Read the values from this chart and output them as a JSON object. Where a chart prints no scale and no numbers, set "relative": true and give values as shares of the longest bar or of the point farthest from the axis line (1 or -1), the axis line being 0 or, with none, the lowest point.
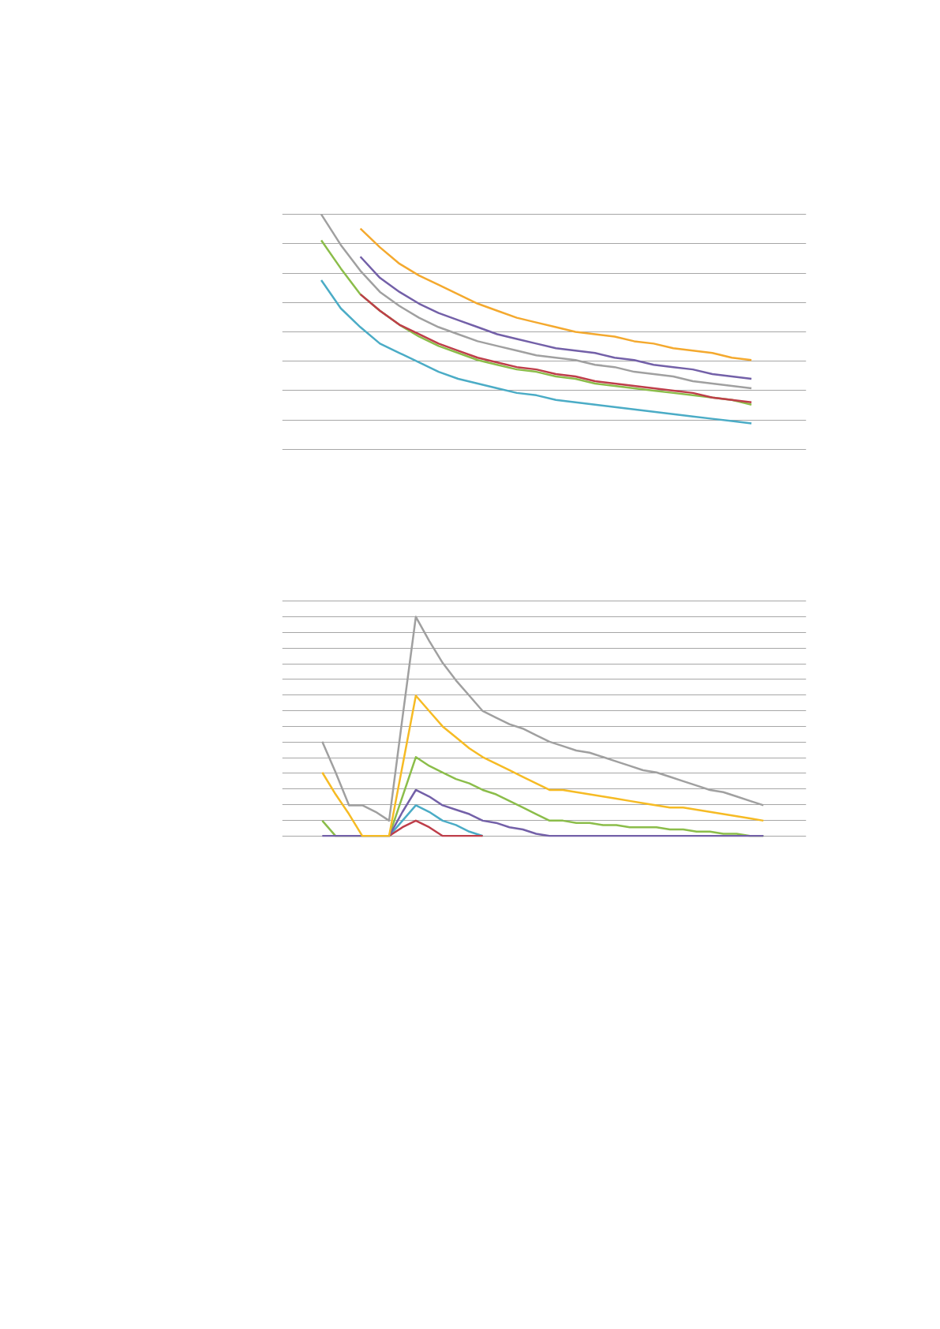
{
  "chart_data": [
    {
      "type": "line",
      "relative": true,
      "grid": "y",
      "tick_labels": false,
      "line_style": "solid",
      "marker": "none",
      "categories": [
        null,
        null,
        null,
        null,
        null,
        null,
        null,
        null,
        null,
        null,
        null,
        null,
        null,
        null,
        null,
        null,
        null,
        null,
        null,
        null,
        null,
        null,
        null
      ],
      "series": [
        {
          "color": "#4bacc6",
          "values": [
            0.72,
            0.6,
            0.52,
            0.45,
            0.41,
            0.37,
            0.33,
            0.3,
            0.28,
            0.26,
            0.24,
            0.23,
            0.21,
            0.2,
            0.19,
            0.18,
            0.17,
            0.16,
            0.15,
            0.14,
            0.13,
            0.12,
            0.11
          ]
        },
        {
          "color": "#8bbd4a",
          "values": [
            0.89,
            0.77,
            0.66,
            0.59,
            0.53,
            0.48,
            0.44,
            0.41,
            0.38,
            0.36,
            0.34,
            0.33,
            0.31,
            0.3,
            0.28,
            0.27,
            0.26,
            0.25,
            0.24,
            0.23,
            0.22,
            0.21,
            0.19
          ]
        },
        {
          "color": "#a0a0a0",
          "values": [
            1.0,
            0.87,
            0.76,
            0.67,
            0.61,
            0.56,
            0.52,
            0.49,
            0.46,
            0.44,
            0.42,
            0.4,
            0.39,
            0.38,
            0.36,
            0.35,
            0.33,
            0.32,
            0.31,
            0.29,
            0.28,
            0.27,
            0.26
          ]
        },
        {
          "color": "#be3e4a",
          "values": [
            null,
            null,
            0.66,
            0.59,
            0.53,
            0.49,
            0.45,
            0.42,
            0.39,
            0.37,
            0.35,
            0.34,
            0.32,
            0.31,
            0.29,
            0.28,
            0.27,
            0.26,
            0.25,
            0.24,
            0.22,
            0.21,
            0.2
          ]
        },
        {
          "color": "#7360a8",
          "values": [
            null,
            null,
            0.82,
            0.73,
            0.67,
            0.62,
            0.58,
            0.55,
            0.52,
            0.49,
            0.47,
            0.45,
            0.43,
            0.42,
            0.41,
            0.39,
            0.38,
            0.36,
            0.35,
            0.34,
            0.32,
            0.31,
            0.3
          ]
        },
        {
          "color": "#f4a92e",
          "values": [
            null,
            null,
            0.94,
            0.86,
            0.79,
            0.74,
            0.7,
            0.66,
            0.62,
            0.59,
            0.56,
            0.54,
            0.52,
            0.5,
            0.49,
            0.48,
            0.46,
            0.45,
            0.43,
            0.42,
            0.41,
            0.39,
            0.38
          ]
        }
      ]
    },
    {
      "type": "line",
      "relative": true,
      "grid": "y",
      "tick_labels": false,
      "line_style": "solid",
      "marker": "none",
      "categories": [
        null,
        null,
        null,
        null,
        null,
        null,
        null,
        null,
        null,
        null,
        null,
        null,
        null,
        null,
        null,
        null,
        null,
        null,
        null,
        null,
        null,
        null,
        null,
        null,
        null,
        null,
        null,
        null,
        null,
        null,
        null,
        null,
        null,
        null
      ],
      "series": [
        {
          "color": "#4bacc6",
          "values": [
            null,
            null,
            null,
            null,
            null,
            0,
            0.07,
            0.14,
            0.11,
            0.07,
            0.05,
            0.02,
            0,
            null,
            null,
            null,
            null,
            null,
            null,
            null,
            null,
            null,
            null,
            null,
            null,
            null,
            null,
            null,
            null,
            null,
            null,
            null,
            null,
            null
          ]
        },
        {
          "color": "#8bbd4a",
          "values": [
            0.07,
            0,
            0,
            0,
            0,
            0,
            0.18,
            0.36,
            0.32,
            0.29,
            0.26,
            0.24,
            0.21,
            0.19,
            0.16,
            0.13,
            0.1,
            0.07,
            0.07,
            0.06,
            0.06,
            0.05,
            0.05,
            0.04,
            0.04,
            0.04,
            0.03,
            0.03,
            0.02,
            0.02,
            0.01,
            0.01,
            0,
            0
          ]
        },
        {
          "color": "#a0a0a0",
          "values": [
            0.43,
            0.29,
            0.14,
            0.14,
            0.11,
            0.07,
            0.54,
            1.0,
            0.89,
            0.79,
            0.71,
            0.64,
            0.57,
            0.54,
            0.51,
            0.49,
            0.46,
            0.43,
            0.41,
            0.39,
            0.38,
            0.36,
            0.34,
            0.32,
            0.3,
            0.29,
            0.27,
            0.25,
            0.23,
            0.21,
            0.2,
            0.18,
            0.16,
            0.14
          ]
        },
        {
          "color": "#be3e4a",
          "values": [
            null,
            null,
            null,
            null,
            null,
            0,
            0.04,
            0.07,
            0.04,
            0,
            0,
            0,
            0,
            null,
            null,
            null,
            null,
            null,
            null,
            null,
            null,
            null,
            null,
            null,
            null,
            null,
            null,
            null,
            null,
            null,
            null,
            null,
            null,
            null
          ]
        },
        {
          "color": "#7360a8",
          "values": [
            0,
            0,
            0,
            0,
            0,
            0,
            0.11,
            0.21,
            0.18,
            0.14,
            0.12,
            0.1,
            0.07,
            0.06,
            0.04,
            0.03,
            0.01,
            0,
            0,
            0,
            0,
            0,
            0,
            0,
            0,
            0,
            0,
            0,
            0,
            0,
            0,
            0,
            0,
            0
          ]
        },
        {
          "color": "#f6bb24",
          "values": [
            0.29,
            0.19,
            0.1,
            0,
            0,
            0,
            0.32,
            0.64,
            0.57,
            0.5,
            0.45,
            0.4,
            0.36,
            0.33,
            0.3,
            0.27,
            0.24,
            0.21,
            0.21,
            0.2,
            0.19,
            0.18,
            0.17,
            0.16,
            0.15,
            0.14,
            0.13,
            0.13,
            0.12,
            0.11,
            0.1,
            0.09,
            0.08,
            0.07
          ]
        }
      ]
    }
  ]
}
